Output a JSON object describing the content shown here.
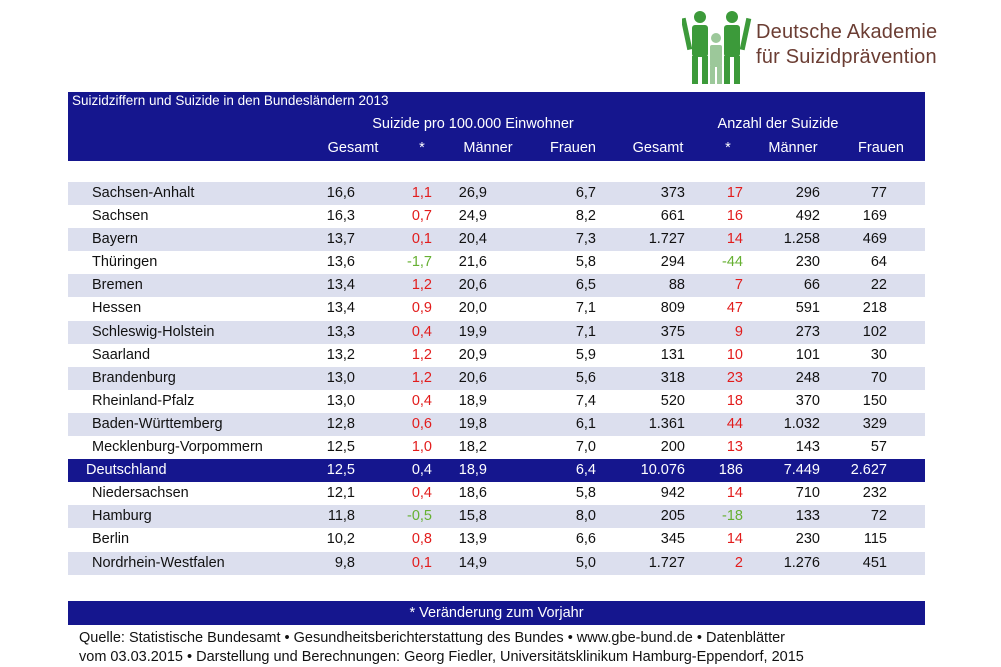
{
  "logo": {
    "line1": "Deutsche Akademie",
    "line2": "für Suizidprävention"
  },
  "header": {
    "title": "Suizidziffern und Suizide in den Bundesländern 2013",
    "group_rate": "Suizide pro 100.000 Einwohner",
    "group_count": "Anzahl der Suizide",
    "columns": [
      "Gesamt",
      "*",
      "Männer",
      "Frauen",
      "Gesamt",
      "*",
      "Männer",
      "Frauen"
    ]
  },
  "rows": [
    {
      "name": "Sachsen-Anhalt",
      "values": [
        "16,6",
        "1,1",
        "26,9",
        "6,7",
        "373",
        "17",
        "296",
        "77"
      ],
      "trend": "up"
    },
    {
      "name": "Sachsen",
      "values": [
        "16,3",
        "0,7",
        "24,9",
        "8,2",
        "661",
        "16",
        "492",
        "169"
      ],
      "trend": "up"
    },
    {
      "name": "Bayern",
      "values": [
        "13,7",
        "0,1",
        "20,4",
        "7,3",
        "1.727",
        "14",
        "1.258",
        "469"
      ],
      "trend": "up"
    },
    {
      "name": "Thüringen",
      "values": [
        "13,6",
        "-1,7",
        "21,6",
        "5,8",
        "294",
        "-44",
        "230",
        "64"
      ],
      "trend": "down"
    },
    {
      "name": "Bremen",
      "values": [
        "13,4",
        "1,2",
        "20,6",
        "6,5",
        "88",
        "7",
        "66",
        "22"
      ],
      "trend": "up"
    },
    {
      "name": "Hessen",
      "values": [
        "13,4",
        "0,9",
        "20,0",
        "7,1",
        "809",
        "47",
        "591",
        "218"
      ],
      "trend": "up"
    },
    {
      "name": "Schleswig-Holstein",
      "values": [
        "13,3",
        "0,4",
        "19,9",
        "7,1",
        "375",
        "9",
        "273",
        "102"
      ],
      "trend": "up"
    },
    {
      "name": "Saarland",
      "values": [
        "13,2",
        "1,2",
        "20,9",
        "5,9",
        "131",
        "10",
        "101",
        "30"
      ],
      "trend": "up"
    },
    {
      "name": "Brandenburg",
      "values": [
        "13,0",
        "1,2",
        "20,6",
        "5,6",
        "318",
        "23",
        "248",
        "70"
      ],
      "trend": "up"
    },
    {
      "name": "Rheinland-Pfalz",
      "values": [
        "13,0",
        "0,4",
        "18,9",
        "7,4",
        "520",
        "18",
        "370",
        "150"
      ],
      "trend": "up"
    },
    {
      "name": "Baden-Württemberg",
      "values": [
        "12,8",
        "0,6",
        "19,8",
        "6,1",
        "1.361",
        "44",
        "1.032",
        "329"
      ],
      "trend": "up"
    },
    {
      "name": "Mecklenburg-Vorpommern",
      "values": [
        "12,5",
        "1,0",
        "18,2",
        "7,0",
        "200",
        "13",
        "143",
        "57"
      ],
      "trend": "up"
    },
    {
      "name": "Deutschland",
      "values": [
        "12,5",
        "0,4",
        "18,9",
        "6,4",
        "10.076",
        "186",
        "7.449",
        "2.627"
      ],
      "trend": "total"
    },
    {
      "name": "Niedersachsen",
      "values": [
        "12,1",
        "0,4",
        "18,6",
        "5,8",
        "942",
        "14",
        "710",
        "232"
      ],
      "trend": "up"
    },
    {
      "name": "Hamburg",
      "values": [
        "11,8",
        "-0,5",
        "15,8",
        "8,0",
        "205",
        "-18",
        "133",
        "72"
      ],
      "trend": "down"
    },
    {
      "name": "Berlin",
      "values": [
        "10,2",
        "0,8",
        "13,9",
        "6,6",
        "345",
        "14",
        "230",
        "115"
      ],
      "trend": "up"
    },
    {
      "name": "Nordrhein-Westfalen",
      "values": [
        "9,8",
        "0,1",
        "14,9",
        "5,0",
        "1.727",
        "2",
        "1.276",
        "451"
      ],
      "trend": "up"
    }
  ],
  "footnote": "* Veränderung zum Vorjahr",
  "source": {
    "line1": "Quelle: Statistische Bundesamt • Gesundheitsberichterstattung des Bundes • www.gbe-bund.de • Datenblätter",
    "line2": "vom 03.03.2015 • Darstellung und Berechnungen: Georg Fiedler, Universitätsklinikum Hamburg-Eppendorf, 2015"
  },
  "colors": {
    "navy": "#15168e",
    "shade": "#dcdfee",
    "increase": "#e21c1c",
    "decrease": "#66b032",
    "logo_text": "#6b3d33",
    "logo_green": "#3c9a3a"
  }
}
